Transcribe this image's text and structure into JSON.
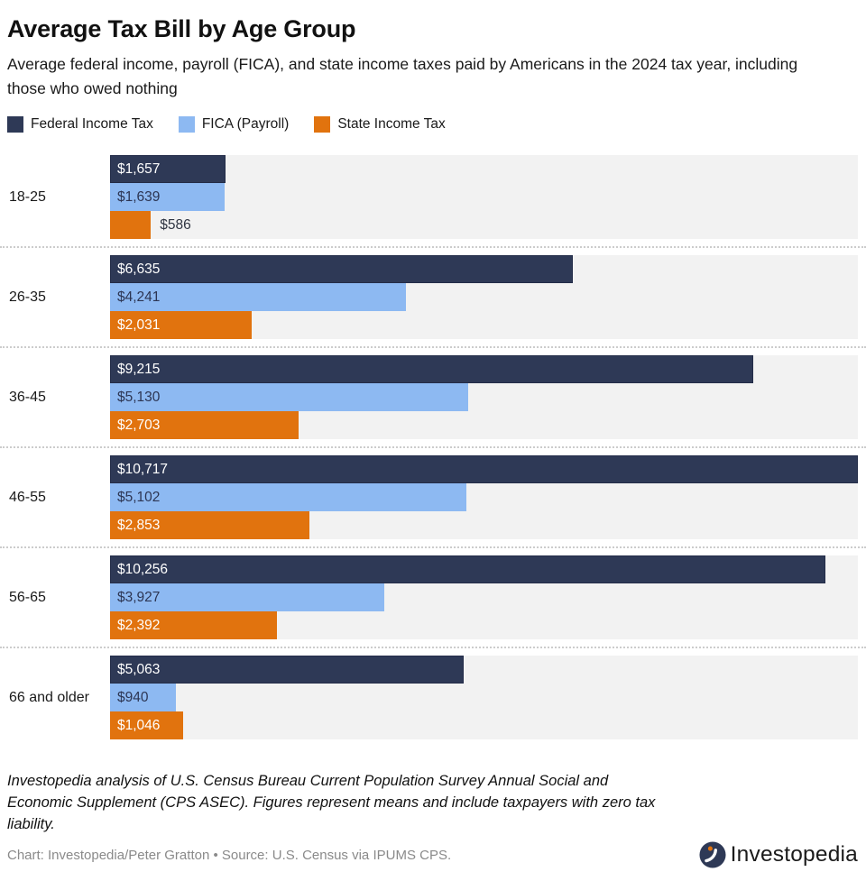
{
  "title": "Average Tax Bill by Age Group",
  "subtitle": "Average federal income, payroll (FICA), and state income taxes paid by Americans in the 2024 tax year, including those who owed nothing",
  "legend": [
    {
      "label": "Federal Income Tax",
      "color": "#2e3956"
    },
    {
      "label": "FICA (Payroll)",
      "color": "#8db9f2"
    },
    {
      "label": "State Income Tax",
      "color": "#e1730e"
    }
  ],
  "chart_data": {
    "type": "bar",
    "orientation": "horizontal",
    "title": "Average Tax Bill by Age Group",
    "categories": [
      "18-25",
      "26-35",
      "36-45",
      "46-55",
      "56-65",
      "66 and older"
    ],
    "series": [
      {
        "name": "Federal Income Tax",
        "color": "#2e3956",
        "label_color": "#ffffff",
        "values": [
          1657,
          6635,
          9215,
          10717,
          10256,
          5063
        ],
        "labels": [
          "$1,657",
          "$6,635",
          "$9,215",
          "$10,717",
          "$10,256",
          "$5,063"
        ]
      },
      {
        "name": "FICA (Payroll)",
        "color": "#8db9f2",
        "label_color": "#2c3553",
        "values": [
          1639,
          4241,
          5130,
          5102,
          3927,
          940
        ],
        "labels": [
          "$1,639",
          "$4,241",
          "$5,130",
          "$5,102",
          "$3,927",
          "$940"
        ]
      },
      {
        "name": "State Income Tax",
        "color": "#e1730e",
        "label_color": "#ffffff",
        "values": [
          586,
          2031,
          2703,
          2853,
          2392,
          1046
        ],
        "labels": [
          "$586",
          "$2,031",
          "$2,703",
          "$2,853",
          "$2,392",
          "$1,046"
        ]
      }
    ],
    "xmax": 10717,
    "plot_background": "#f2f2f2",
    "grid": false,
    "legend_position": "top",
    "value_prefix": "$"
  },
  "footer": {
    "note": "Investopedia analysis of U.S. Census Bureau Current Population Survey Annual Social and Economic Supplement (CPS ASEC). Figures represent means and include taxpayers with zero tax liability.",
    "credit": "Chart: Investopedia/Peter Gratton • Source: U.S. Census via IPUMS CPS."
  },
  "logo": {
    "text": "Investopedia"
  }
}
